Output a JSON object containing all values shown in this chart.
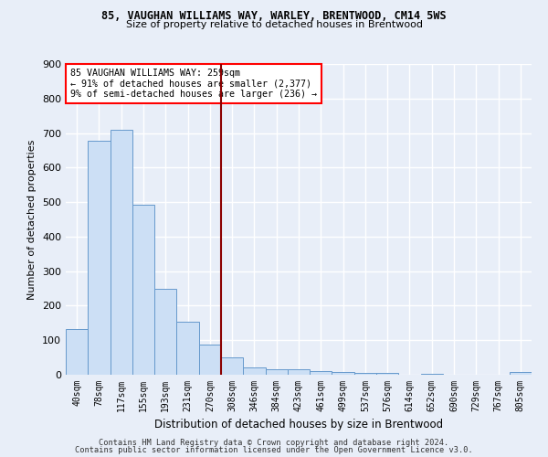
{
  "title1": "85, VAUGHAN WILLIAMS WAY, WARLEY, BRENTWOOD, CM14 5WS",
  "title2": "Size of property relative to detached houses in Brentwood",
  "xlabel": "Distribution of detached houses by size in Brentwood",
  "ylabel": "Number of detached properties",
  "bar_labels": [
    "40sqm",
    "78sqm",
    "117sqm",
    "155sqm",
    "193sqm",
    "231sqm",
    "270sqm",
    "308sqm",
    "346sqm",
    "384sqm",
    "423sqm",
    "461sqm",
    "499sqm",
    "537sqm",
    "576sqm",
    "614sqm",
    "652sqm",
    "690sqm",
    "729sqm",
    "767sqm",
    "805sqm"
  ],
  "bar_values": [
    133,
    678,
    710,
    493,
    250,
    153,
    87,
    49,
    22,
    15,
    16,
    10,
    9,
    5,
    4,
    1,
    2,
    1,
    1,
    0,
    8
  ],
  "bar_color": "#ccdff5",
  "bar_edge_color": "#6699cc",
  "vline_x": 6.5,
  "vline_color": "#8b0000",
  "annotation_text": "85 VAUGHAN WILLIAMS WAY: 259sqm\n← 91% of detached houses are smaller (2,377)\n9% of semi-detached houses are larger (236) →",
  "annotation_box_color": "white",
  "annotation_box_edge_color": "red",
  "ylim": [
    0,
    900
  ],
  "yticks": [
    0,
    100,
    200,
    300,
    400,
    500,
    600,
    700,
    800,
    900
  ],
  "footer1": "Contains HM Land Registry data © Crown copyright and database right 2024.",
  "footer2": "Contains public sector information licensed under the Open Government Licence v3.0.",
  "bg_color": "#e8eef8",
  "grid_color": "white"
}
